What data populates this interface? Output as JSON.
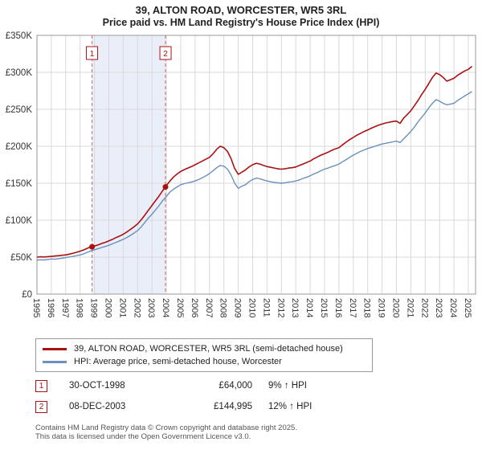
{
  "title": "39, ALTON ROAD, WORCESTER, WR5 3RL",
  "subtitle": "Price paid vs. HM Land Registry's House Price Index (HPI)",
  "footer": {
    "line1": "Contains HM Land Registry data © Crown copyright and database right 2025.",
    "line2": "This data is licensed under the Open Government Licence v3.0."
  },
  "chart_data": {
    "type": "line",
    "title": "39, ALTON ROAD, WORCESTER, WR5 3RL — Price paid vs. HPI",
    "unit": "GBP thousands",
    "xlim": [
      1995,
      2025.5
    ],
    "ylim": [
      0,
      350
    ],
    "grid": true,
    "legend_position": "below",
    "y_ticks": [
      "£0",
      "£50K",
      "£100K",
      "£150K",
      "£200K",
      "£250K",
      "£300K",
      "£350K"
    ],
    "y_tick_values": [
      0,
      50,
      100,
      150,
      200,
      250,
      300,
      350
    ],
    "x_ticks": [
      1995,
      1996,
      1997,
      1998,
      1999,
      2000,
      2001,
      2002,
      2003,
      2004,
      2005,
      2006,
      2007,
      2008,
      2009,
      2010,
      2011,
      2012,
      2013,
      2014,
      2015,
      2016,
      2017,
      2018,
      2019,
      2020,
      2021,
      2022,
      2023,
      2024,
      2025
    ],
    "x": [
      1995,
      1995.25,
      1995.5,
      1995.75,
      1996,
      1996.25,
      1996.5,
      1996.75,
      1997,
      1997.25,
      1997.5,
      1997.75,
      1998,
      1998.25,
      1998.5,
      1998.75,
      1999,
      1999.25,
      1999.5,
      1999.75,
      2000,
      2000.25,
      2000.5,
      2000.75,
      2001,
      2001.25,
      2001.5,
      2001.75,
      2002,
      2002.25,
      2002.5,
      2002.75,
      2003,
      2003.25,
      2003.5,
      2003.75,
      2004,
      2004.25,
      2004.5,
      2004.75,
      2005,
      2005.25,
      2005.5,
      2005.75,
      2006,
      2006.25,
      2006.5,
      2006.75,
      2007,
      2007.25,
      2007.5,
      2007.75,
      2008,
      2008.25,
      2008.5,
      2008.75,
      2009,
      2009.25,
      2009.5,
      2009.75,
      2010,
      2010.25,
      2010.5,
      2010.75,
      2011,
      2011.25,
      2011.5,
      2011.75,
      2012,
      2012.25,
      2012.5,
      2012.75,
      2013,
      2013.25,
      2013.5,
      2013.75,
      2014,
      2014.25,
      2014.5,
      2014.75,
      2015,
      2015.25,
      2015.5,
      2015.75,
      2016,
      2016.25,
      2016.5,
      2016.75,
      2017,
      2017.25,
      2017.5,
      2017.75,
      2018,
      2018.25,
      2018.5,
      2018.75,
      2019,
      2019.25,
      2019.5,
      2019.75,
      2020,
      2020.25,
      2020.5,
      2020.75,
      2021,
      2021.25,
      2021.5,
      2021.75,
      2022,
      2022.25,
      2022.5,
      2022.75,
      2023,
      2023.25,
      2023.5,
      2023.75,
      2024,
      2024.25,
      2024.5,
      2024.75,
      2025,
      2025.25
    ],
    "series": [
      {
        "name": "39, ALTON ROAD, WORCESTER, WR5 3RL (semi-detached house)",
        "color": "#aa1111",
        "values": [
          50.0,
          50.4,
          50.2,
          50.7,
          51.0,
          51.5,
          52.0,
          52.5,
          53.0,
          54.0,
          55.2,
          56.5,
          58.0,
          59.8,
          62.0,
          64.0,
          65.0,
          66.5,
          68.5,
          70.0,
          72.0,
          74.0,
          76.5,
          78.5,
          81.0,
          84.0,
          87.5,
          91.0,
          95.0,
          100.5,
          107.0,
          113.5,
          120.0,
          126.5,
          133.0,
          140.0,
          147.0,
          153.0,
          158.5,
          162.5,
          166.0,
          168.5,
          170.5,
          172.5,
          175.0,
          177.5,
          180.0,
          182.5,
          185.0,
          190.0,
          196.0,
          200.0,
          198.0,
          193.0,
          183.0,
          170.0,
          162.0,
          165.0,
          168.0,
          172.0,
          175.0,
          177.0,
          176.0,
          174.0,
          172.5,
          171.5,
          170.5,
          169.5,
          169.0,
          169.5,
          170.5,
          171.0,
          172.0,
          174.0,
          176.0,
          178.0,
          180.0,
          183.0,
          185.5,
          188.0,
          190.0,
          192.0,
          194.5,
          196.5,
          198.0,
          202.0,
          205.5,
          209.0,
          212.0,
          215.0,
          217.5,
          220.0,
          222.0,
          224.5,
          226.5,
          228.5,
          230.0,
          231.5,
          232.5,
          233.5,
          234.0,
          231.0,
          238.0,
          243.0,
          248.0,
          255.0,
          262.0,
          270.0,
          277.0,
          285.0,
          293.0,
          299.0,
          297.0,
          293.0,
          288.0,
          290.0,
          292.0,
          296.0,
          299.0,
          302.0,
          304.0,
          308.0
        ]
      },
      {
        "name": "HPI: Average price, semi-detached house, Worcester",
        "color": "#6b8fbe",
        "values": [
          46.0,
          46.4,
          46.2,
          46.8,
          47.5,
          47.2,
          47.9,
          48.6,
          49.5,
          50.2,
          51.0,
          52.0,
          53.0,
          54.5,
          56.5,
          58.5,
          60.0,
          61.5,
          63.0,
          64.5,
          66.0,
          68.0,
          70.0,
          72.0,
          74.0,
          76.5,
          79.5,
          82.5,
          86.0,
          91.0,
          97.0,
          103.0,
          108.0,
          114.0,
          120.0,
          126.5,
          132.0,
          138.0,
          142.0,
          145.0,
          148.0,
          149.5,
          150.5,
          151.5,
          153.0,
          155.0,
          157.5,
          160.0,
          163.0,
          167.0,
          171.0,
          174.0,
          173.0,
          169.0,
          161.0,
          150.0,
          143.0,
          146.0,
          148.0,
          152.0,
          155.0,
          157.0,
          156.0,
          154.5,
          153.0,
          152.0,
          151.0,
          150.5,
          150.0,
          150.5,
          151.5,
          152.0,
          153.0,
          154.5,
          156.5,
          158.0,
          160.0,
          162.5,
          164.5,
          167.0,
          169.0,
          170.5,
          172.5,
          174.0,
          176.0,
          179.0,
          182.0,
          185.0,
          188.0,
          190.5,
          193.0,
          195.0,
          197.0,
          198.5,
          200.0,
          201.5,
          203.0,
          204.0,
          205.0,
          206.0,
          207.0,
          205.0,
          210.0,
          215.0,
          220.0,
          226.0,
          233.0,
          239.0,
          245.0,
          252.0,
          258.0,
          263.0,
          261.0,
          258.0,
          256.0,
          257.0,
          258.0,
          262.0,
          265.0,
          268.0,
          271.0,
          274.0
        ]
      }
    ],
    "sales": [
      {
        "label": "1",
        "date": "30-OCT-1998",
        "x": 1998.83,
        "price": 64000,
        "price_label": "£64,000",
        "vs_hpi": "9% ↑ HPI"
      },
      {
        "label": "2",
        "date": "08-DEC-2003",
        "x": 2003.94,
        "price": 144995,
        "price_label": "£144,995",
        "vs_hpi": "12% ↑ HPI"
      }
    ],
    "colors": {
      "property": "#aa1111",
      "hpi": "#6b8fbe",
      "band": "#e9eef9",
      "sale_line": "#cc6666",
      "grid": "#d9d9d9",
      "border": "#999999"
    }
  }
}
